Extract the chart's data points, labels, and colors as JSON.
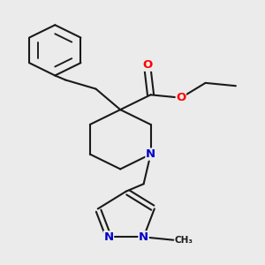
{
  "background_color": "#ebebeb",
  "bond_color": "#1a1a1a",
  "bond_width": 1.5,
  "atom_colors": {
    "O": "#ff0000",
    "N": "#0000cc",
    "C": "#1a1a1a"
  },
  "font_size_atom": 9.5,
  "scale": 1.0
}
